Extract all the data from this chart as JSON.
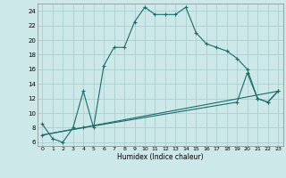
{
  "xlabel": "Humidex (Indice chaleur)",
  "bg_color": "#cce8e8",
  "line_color": "#1a6b6b",
  "grid_color": "#aacfcf",
  "xlim": [
    -0.5,
    23.5
  ],
  "ylim": [
    5.5,
    25.0
  ],
  "xtick_labels": [
    "0",
    "1",
    "2",
    "3",
    "4",
    "5",
    "6",
    "7",
    "8",
    "9",
    "10",
    "11",
    "12",
    "13",
    "14",
    "15",
    "16",
    "17",
    "18",
    "19",
    "20",
    "21",
    "22",
    "23"
  ],
  "xtick_vals": [
    0,
    1,
    2,
    3,
    4,
    5,
    6,
    7,
    8,
    9,
    10,
    11,
    12,
    13,
    14,
    15,
    16,
    17,
    18,
    19,
    20,
    21,
    22,
    23
  ],
  "ytick_vals": [
    6,
    8,
    10,
    12,
    14,
    16,
    18,
    20,
    22,
    24
  ],
  "line1_x": [
    0,
    1,
    2,
    3,
    4,
    5,
    6,
    7,
    8,
    9,
    10,
    11,
    12,
    13,
    14,
    15,
    16,
    17,
    18,
    19,
    20,
    21,
    22,
    23
  ],
  "line1_y": [
    8.5,
    6.5,
    6.0,
    8.0,
    13.0,
    8.0,
    16.5,
    19.0,
    19.0,
    22.5,
    24.5,
    23.5,
    23.5,
    23.5,
    24.5,
    21.0,
    19.5,
    19.0,
    18.5,
    17.5,
    16.0,
    12.0,
    11.5,
    13.0
  ],
  "line2_x": [
    0,
    4,
    19,
    20,
    21,
    22,
    23
  ],
  "line2_y": [
    7.0,
    8.0,
    11.5,
    15.5,
    12.0,
    11.5,
    13.0
  ],
  "line3_x": [
    0,
    23
  ],
  "line3_y": [
    7.0,
    13.0
  ]
}
